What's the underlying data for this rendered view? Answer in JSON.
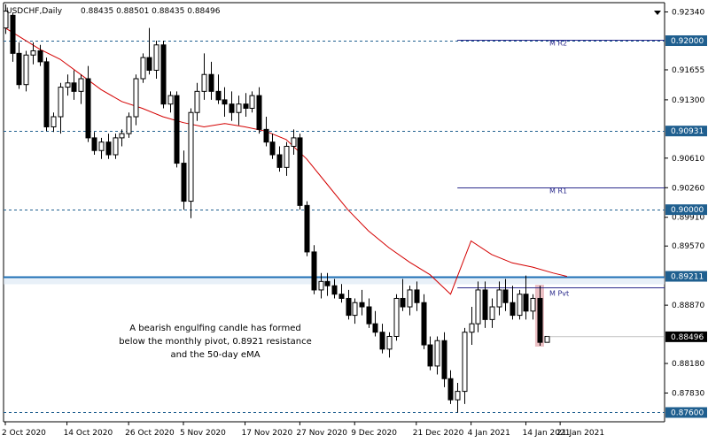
{
  "header": {
    "symbol": "USDCHF,Daily",
    "ohlc": "0.88435 0.88501 0.88435 0.88496"
  },
  "annotation": {
    "lines": [
      "A bearish engulfing candle has formed",
      "below the monthly pivot, 0.8921 resistance",
      "and the 50-day eMA"
    ]
  },
  "colors": {
    "candle_border": "#000000",
    "bull_fill": "#ffffff",
    "bear_fill": "#000000",
    "ema": "#d40000",
    "resistance": "#1f6fb5",
    "dashed_level": "#1f5f8f",
    "pivot_line": "#2b2b8c",
    "price_tag_bg": "#1f5f8f",
    "current_tag_bg": "#000000",
    "highlight": "#e8b4b8"
  },
  "chart_data": {
    "type": "candlestick",
    "symbol": "USDCHF",
    "timeframe": "Daily",
    "ylim": [
      0.8749,
      0.9245
    ],
    "x_ticks": [
      {
        "label": "2 Oct 2020",
        "index": 0
      },
      {
        "label": "14 Oct 2020",
        "index": 9
      },
      {
        "label": "26 Oct 2020",
        "index": 18
      },
      {
        "label": "5 Nov 2020",
        "index": 26
      },
      {
        "label": "17 Nov 2020",
        "index": 35
      },
      {
        "label": "27 Nov 2020",
        "index": 43
      },
      {
        "label": "9 Dec 2020",
        "index": 51
      },
      {
        "label": "21 Dec 2020",
        "index": 60
      },
      {
        "label": "4 Jan 2021",
        "index": 68
      },
      {
        "label": "14 Jan 2021",
        "index": 76
      },
      {
        "label": "21 Jan 2021",
        "index": 81
      }
    ],
    "y_ticks": [
      "0.92340",
      "0.91655",
      "0.91300",
      "0.90610",
      "0.90260",
      "0.89910",
      "0.89570",
      "0.88870",
      "0.88180",
      "0.87830"
    ],
    "price_tags": [
      {
        "label": "0.92000",
        "value": 0.92,
        "line": "dashed"
      },
      {
        "label": "0.90931",
        "value": 0.90931,
        "line": "dashed"
      },
      {
        "label": "0.90000",
        "value": 0.9,
        "line": "dashed"
      },
      {
        "label": "0.89211",
        "value": 0.89211,
        "line": "solid"
      },
      {
        "label": "0.87600",
        "value": 0.876,
        "line": "dashed"
      }
    ],
    "current_price": {
      "label": "0.88496",
      "value": 0.88496
    },
    "pivots": [
      {
        "label": "M R2",
        "value": 0.9201,
        "from_index": 66
      },
      {
        "label": "M R1",
        "value": 0.9026,
        "from_index": 66
      },
      {
        "label": "M Pvt",
        "value": 0.8908,
        "from_index": 66
      }
    ],
    "ema": {
      "period": 50,
      "points": [
        [
          0,
          0.9215
        ],
        [
          2,
          0.9205
        ],
        [
          5,
          0.919
        ],
        [
          8,
          0.9178
        ],
        [
          11,
          0.916
        ],
        [
          14,
          0.9142
        ],
        [
          17,
          0.9128
        ],
        [
          20,
          0.912
        ],
        [
          23,
          0.911
        ],
        [
          26,
          0.9103
        ],
        [
          29,
          0.9098
        ],
        [
          32,
          0.9102
        ],
        [
          35,
          0.9098
        ],
        [
          38,
          0.9093
        ],
        [
          41,
          0.9083
        ],
        [
          44,
          0.906
        ],
        [
          47,
          0.903
        ],
        [
          50,
          0.9
        ],
        [
          53,
          0.8975
        ],
        [
          56,
          0.8955
        ],
        [
          59,
          0.8938
        ],
        [
          62,
          0.8923
        ],
        [
          65,
          0.89
        ],
        [
          68,
          0.8963
        ],
        [
          71,
          0.8947
        ],
        [
          74,
          0.8937
        ],
        [
          77,
          0.8932
        ],
        [
          80,
          0.8925
        ],
        [
          82,
          0.8921
        ]
      ]
    },
    "candles": [
      [
        0.9215,
        0.9243,
        0.9208,
        0.9235
      ],
      [
        0.923,
        0.9233,
        0.9175,
        0.9185
      ],
      [
        0.9185,
        0.9198,
        0.9143,
        0.9148
      ],
      [
        0.9148,
        0.9188,
        0.914,
        0.9183
      ],
      [
        0.9183,
        0.9198,
        0.9172,
        0.9188
      ],
      [
        0.9188,
        0.9195,
        0.917,
        0.9175
      ],
      [
        0.9175,
        0.918,
        0.9093,
        0.9098
      ],
      [
        0.9098,
        0.9115,
        0.9092,
        0.911
      ],
      [
        0.911,
        0.915,
        0.909,
        0.9145
      ],
      [
        0.9145,
        0.916,
        0.9135,
        0.915
      ],
      [
        0.915,
        0.9165,
        0.913,
        0.914
      ],
      [
        0.914,
        0.916,
        0.9125,
        0.9155
      ],
      [
        0.9155,
        0.917,
        0.908,
        0.9085
      ],
      [
        0.9085,
        0.9092,
        0.9065,
        0.907
      ],
      [
        0.907,
        0.9085,
        0.906,
        0.908
      ],
      [
        0.908,
        0.909,
        0.906,
        0.9065
      ],
      [
        0.9065,
        0.909,
        0.906,
        0.9085
      ],
      [
        0.9085,
        0.9095,
        0.9075,
        0.909
      ],
      [
        0.909,
        0.9115,
        0.9085,
        0.911
      ],
      [
        0.911,
        0.916,
        0.91,
        0.9155
      ],
      [
        0.9155,
        0.9185,
        0.915,
        0.918
      ],
      [
        0.918,
        0.9215,
        0.916,
        0.9165
      ],
      [
        0.9165,
        0.92,
        0.9155,
        0.9195
      ],
      [
        0.9195,
        0.92,
        0.912,
        0.9125
      ],
      [
        0.9125,
        0.914,
        0.9115,
        0.9135
      ],
      [
        0.9135,
        0.914,
        0.905,
        0.9055
      ],
      [
        0.9055,
        0.907,
        0.9,
        0.901
      ],
      [
        0.901,
        0.912,
        0.899,
        0.9115
      ],
      [
        0.9115,
        0.915,
        0.9105,
        0.914
      ],
      [
        0.914,
        0.9185,
        0.913,
        0.916
      ],
      [
        0.916,
        0.9175,
        0.913,
        0.914
      ],
      [
        0.914,
        0.916,
        0.9125,
        0.913
      ],
      [
        0.913,
        0.9145,
        0.911,
        0.9125
      ],
      [
        0.9125,
        0.914,
        0.9105,
        0.9115
      ],
      [
        0.9115,
        0.9135,
        0.91,
        0.9125
      ],
      [
        0.9125,
        0.9138,
        0.911,
        0.912
      ],
      [
        0.912,
        0.914,
        0.9115,
        0.9135
      ],
      [
        0.9135,
        0.9145,
        0.909,
        0.9095
      ],
      [
        0.9095,
        0.911,
        0.9075,
        0.908
      ],
      [
        0.908,
        0.909,
        0.906,
        0.9065
      ],
      [
        0.9065,
        0.9075,
        0.9045,
        0.905
      ],
      [
        0.905,
        0.908,
        0.904,
        0.9075
      ],
      [
        0.9075,
        0.9095,
        0.9065,
        0.9085
      ],
      [
        0.9085,
        0.909,
        0.9,
        0.9005
      ],
      [
        0.9005,
        0.901,
        0.8945,
        0.895
      ],
      [
        0.895,
        0.8958,
        0.89,
        0.8905
      ],
      [
        0.8905,
        0.8925,
        0.8895,
        0.8915
      ],
      [
        0.8915,
        0.8925,
        0.8898,
        0.891
      ],
      [
        0.891,
        0.8918,
        0.8895,
        0.89
      ],
      [
        0.89,
        0.8912,
        0.889,
        0.8895
      ],
      [
        0.8895,
        0.8905,
        0.887,
        0.8875
      ],
      [
        0.8875,
        0.8895,
        0.8865,
        0.889
      ],
      [
        0.889,
        0.8905,
        0.8875,
        0.8885
      ],
      [
        0.8885,
        0.8895,
        0.886,
        0.8865
      ],
      [
        0.8865,
        0.888,
        0.885,
        0.8855
      ],
      [
        0.8855,
        0.8865,
        0.883,
        0.8835
      ],
      [
        0.8835,
        0.8855,
        0.8825,
        0.885
      ],
      [
        0.885,
        0.89,
        0.8845,
        0.8895
      ],
      [
        0.8895,
        0.8918,
        0.888,
        0.8885
      ],
      [
        0.8885,
        0.891,
        0.8875,
        0.8905
      ],
      [
        0.8905,
        0.8915,
        0.888,
        0.889
      ],
      [
        0.889,
        0.89,
        0.8835,
        0.884
      ],
      [
        0.884,
        0.885,
        0.881,
        0.8815
      ],
      [
        0.8815,
        0.885,
        0.8805,
        0.8845
      ],
      [
        0.8845,
        0.8855,
        0.879,
        0.88
      ],
      [
        0.88,
        0.881,
        0.877,
        0.8775
      ],
      [
        0.8775,
        0.8795,
        0.876,
        0.8785
      ],
      [
        0.8785,
        0.886,
        0.877,
        0.8855
      ],
      [
        0.8855,
        0.8885,
        0.884,
        0.8865
      ],
      [
        0.8865,
        0.8915,
        0.8855,
        0.8905
      ],
      [
        0.8905,
        0.8915,
        0.886,
        0.887
      ],
      [
        0.887,
        0.8895,
        0.886,
        0.8885
      ],
      [
        0.8885,
        0.8915,
        0.8875,
        0.8905
      ],
      [
        0.8905,
        0.8918,
        0.888,
        0.889
      ],
      [
        0.889,
        0.891,
        0.887,
        0.8875
      ],
      [
        0.8875,
        0.8905,
        0.887,
        0.89
      ],
      [
        0.89,
        0.8922,
        0.887,
        0.888
      ],
      [
        0.888,
        0.89,
        0.887,
        0.8895
      ],
      [
        0.8895,
        0.891,
        0.8839,
        0.8843
      ],
      [
        0.8843,
        0.885,
        0.8843,
        0.885
      ]
    ]
  }
}
